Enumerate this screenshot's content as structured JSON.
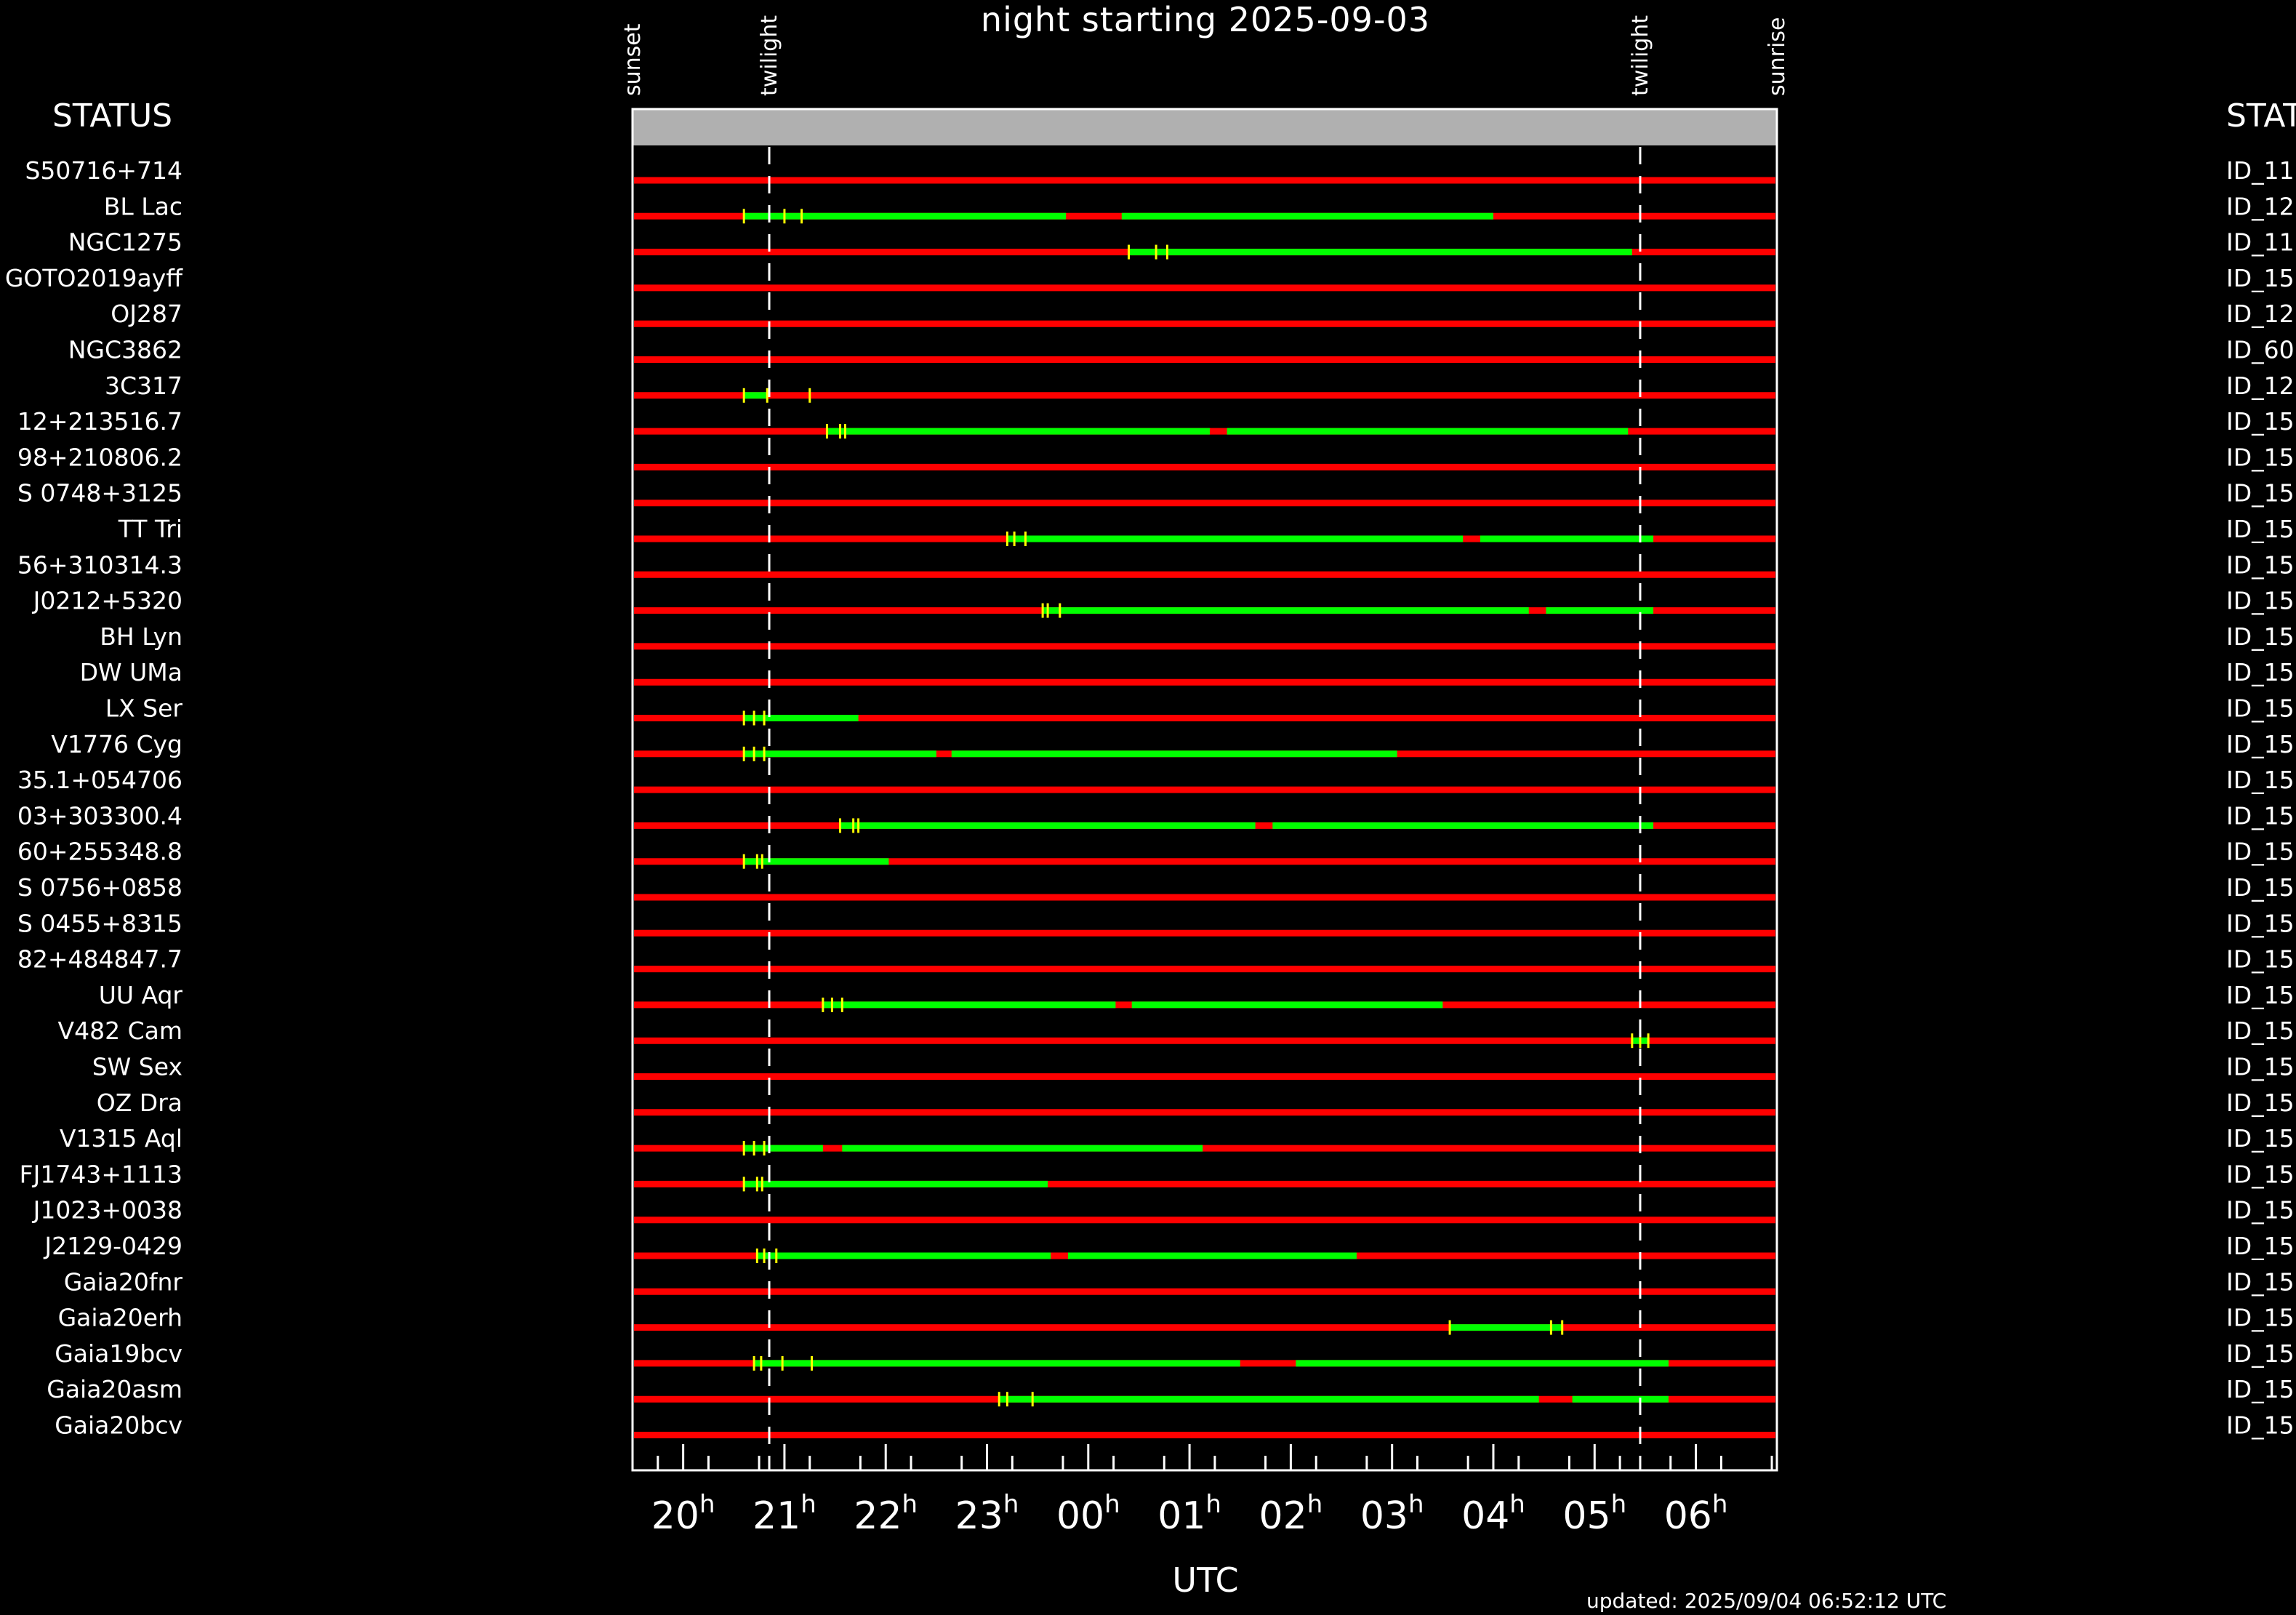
{
  "title": "night starting 2025-09-03",
  "status_left": "STATUS",
  "status_right": "STAT",
  "xlabel": "UTC",
  "updated": "updated: 2025/09/04 06:52:12 UTC",
  "colors": {
    "unobservable": "#ff0000",
    "observable": "#00ff00",
    "marker": "#ffff00",
    "header": "#b0b0b0"
  },
  "chart_data": {
    "type": "gantt",
    "x_unit": "hours UTC",
    "x_range": [
      19.5,
      30.8
    ],
    "ticks": [
      {
        "value": 20,
        "label": "20",
        "sup": "h"
      },
      {
        "value": 21,
        "label": "21",
        "sup": "h"
      },
      {
        "value": 22,
        "label": "22",
        "sup": "h"
      },
      {
        "value": 23,
        "label": "23",
        "sup": "h"
      },
      {
        "value": 24,
        "label": "00",
        "sup": "h"
      },
      {
        "value": 25,
        "label": "01",
        "sup": "h"
      },
      {
        "value": 26,
        "label": "02",
        "sup": "h"
      },
      {
        "value": 27,
        "label": "03",
        "sup": "h"
      },
      {
        "value": 28,
        "label": "04",
        "sup": "h"
      },
      {
        "value": 29,
        "label": "05",
        "sup": "h"
      },
      {
        "value": 30,
        "label": "06",
        "sup": "h"
      }
    ],
    "events": [
      {
        "label": "sunset",
        "x": 19.5,
        "line": false
      },
      {
        "label": "twilight",
        "x": 20.85,
        "line": true
      },
      {
        "label": "twilight",
        "x": 29.45,
        "line": true
      },
      {
        "label": "sunrise",
        "x": 30.8,
        "line": false
      }
    ],
    "rows": [
      {
        "name": "S50716+714",
        "id": "ID_11",
        "green": [],
        "ticks": []
      },
      {
        "name": "BL Lac",
        "id": "ID_12",
        "green": [
          [
            20.6,
            23.78
          ],
          [
            24.33,
            28.0
          ]
        ],
        "ticks": [
          20.6,
          21.0,
          21.17
        ]
      },
      {
        "name": "NGC1275",
        "id": "ID_11",
        "green": [
          [
            24.4,
            29.37
          ]
        ],
        "ticks": [
          24.4,
          24.67,
          24.78
        ]
      },
      {
        "name": "GOTO2019ayff",
        "id": "ID_15",
        "green": [],
        "ticks": []
      },
      {
        "name": "OJ287",
        "id": "ID_12",
        "green": [],
        "ticks": []
      },
      {
        "name": "NGC3862",
        "id": "ID_60",
        "green": [],
        "ticks": []
      },
      {
        "name": "3C317",
        "id": "ID_12",
        "green": [
          [
            20.6,
            20.83
          ]
        ],
        "ticks": [
          20.6,
          20.83,
          21.25
        ]
      },
      {
        "name": "12+213516.7",
        "id": "ID_15",
        "green": [
          [
            21.42,
            25.2
          ],
          [
            25.37,
            29.33
          ]
        ],
        "ticks": [
          21.42,
          21.55,
          21.6
        ]
      },
      {
        "name": "98+210806.2",
        "id": "ID_15",
        "green": [],
        "ticks": []
      },
      {
        "name": "S 0748+3125",
        "id": "ID_15",
        "green": [],
        "ticks": []
      },
      {
        "name": "TT Tri",
        "id": "ID_15",
        "green": [
          [
            23.2,
            27.7
          ],
          [
            27.87,
            29.58
          ]
        ],
        "ticks": [
          23.2,
          23.27,
          23.38
        ]
      },
      {
        "name": "56+310314.3",
        "id": "ID_15",
        "green": [],
        "ticks": []
      },
      {
        "name": "J0212+5320",
        "id": "ID_15",
        "green": [
          [
            23.55,
            28.35
          ],
          [
            28.52,
            29.58
          ]
        ],
        "ticks": [
          23.55,
          23.6,
          23.72
        ]
      },
      {
        "name": "BH Lyn",
        "id": "ID_15",
        "green": [],
        "ticks": []
      },
      {
        "name": "DW UMa",
        "id": "ID_15",
        "green": [],
        "ticks": []
      },
      {
        "name": "LX Ser",
        "id": "ID_15",
        "green": [
          [
            20.6,
            21.73
          ]
        ],
        "ticks": [
          20.6,
          20.7,
          20.8
        ]
      },
      {
        "name": "V1776 Cyg",
        "id": "ID_15",
        "green": [
          [
            20.6,
            22.5
          ],
          [
            22.65,
            27.05
          ]
        ],
        "ticks": [
          20.6,
          20.7,
          20.8
        ]
      },
      {
        "name": "35.1+054706",
        "id": "ID_15",
        "green": [],
        "ticks": []
      },
      {
        "name": "03+303300.4",
        "id": "ID_15",
        "green": [
          [
            21.55,
            25.65
          ],
          [
            25.82,
            29.58
          ]
        ],
        "ticks": [
          21.55,
          21.68,
          21.73
        ]
      },
      {
        "name": "60+255348.8",
        "id": "ID_15",
        "green": [
          [
            20.6,
            22.03
          ]
        ],
        "ticks": [
          20.6,
          20.73,
          20.78
        ]
      },
      {
        "name": "S 0756+0858",
        "id": "ID_15",
        "green": [],
        "ticks": []
      },
      {
        "name": "S 0455+8315",
        "id": "ID_15",
        "green": [],
        "ticks": []
      },
      {
        "name": "82+484847.7",
        "id": "ID_15",
        "green": [],
        "ticks": []
      },
      {
        "name": "UU Aqr",
        "id": "ID_15",
        "green": [
          [
            21.38,
            24.27
          ],
          [
            24.43,
            27.5
          ]
        ],
        "ticks": [
          21.38,
          21.47,
          21.57
        ]
      },
      {
        "name": "V482 Cam",
        "id": "ID_15",
        "green": [
          [
            29.37,
            29.53
          ]
        ],
        "ticks": [
          29.37,
          29.45,
          29.53
        ]
      },
      {
        "name": "SW Sex",
        "id": "ID_15",
        "green": [],
        "ticks": []
      },
      {
        "name": "OZ Dra",
        "id": "ID_15",
        "green": [],
        "ticks": []
      },
      {
        "name": "V1315 Aql",
        "id": "ID_15",
        "green": [
          [
            20.6,
            21.38
          ],
          [
            21.57,
            25.13
          ]
        ],
        "ticks": [
          20.6,
          20.7,
          20.8
        ]
      },
      {
        "name": "FJ1743+1113",
        "id": "ID_15",
        "green": [
          [
            20.6,
            23.6
          ]
        ],
        "ticks": [
          20.6,
          20.73,
          20.78
        ]
      },
      {
        "name": "J1023+0038",
        "id": "ID_15",
        "green": [],
        "ticks": []
      },
      {
        "name": "J2129-0429",
        "id": "ID_15",
        "green": [
          [
            20.73,
            23.63
          ],
          [
            23.8,
            26.65
          ]
        ],
        "ticks": [
          20.73,
          20.8,
          20.92
        ]
      },
      {
        "name": "Gaia20fnr",
        "id": "ID_15",
        "green": [],
        "ticks": []
      },
      {
        "name": "Gaia20erh",
        "id": "ID_15",
        "green": [
          [
            27.57,
            28.68
          ]
        ],
        "ticks": [
          27.57,
          28.57,
          28.68
        ]
      },
      {
        "name": "Gaia19bcv",
        "id": "ID_15",
        "green": [
          [
            20.7,
            25.5
          ],
          [
            26.05,
            29.73
          ]
        ],
        "ticks": [
          20.7,
          20.77,
          20.98,
          21.27
        ]
      },
      {
        "name": "Gaia20asm",
        "id": "ID_15",
        "green": [
          [
            23.12,
            28.45
          ],
          [
            28.78,
            29.73
          ]
        ],
        "ticks": [
          23.12,
          23.2,
          23.45
        ]
      },
      {
        "name": "Gaia20bcv",
        "id": "ID_15",
        "green": [],
        "ticks": []
      }
    ]
  }
}
